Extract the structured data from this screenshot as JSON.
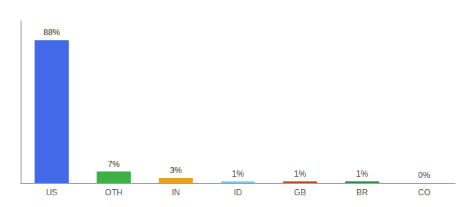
{
  "chart_data": {
    "type": "bar",
    "categories": [
      "US",
      "OTH",
      "IN",
      "ID",
      "GB",
      "BR",
      "CO"
    ],
    "values": [
      88,
      7,
      3,
      1,
      1,
      1,
      0
    ],
    "value_labels": [
      "88%",
      "7%",
      "3%",
      "1%",
      "1%",
      "1%",
      "0%"
    ],
    "colors": [
      "#4169e8",
      "#3cb044",
      "#e8a020",
      "#7ec8e3",
      "#b84c20",
      "#2e8b44",
      "#dddddd"
    ],
    "ylim": [
      0,
      100
    ],
    "grid": false,
    "data_labels": true,
    "tick_labels": "x"
  }
}
